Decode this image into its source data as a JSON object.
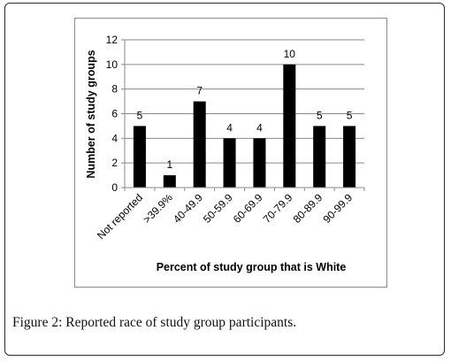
{
  "caption": {
    "label": "Figure 2:",
    "text": " Reported race of study group participants."
  },
  "chart_data": {
    "type": "bar",
    "title": "",
    "xlabel": "Percent of study group that is White",
    "ylabel": "Number of study groups",
    "categories": [
      "Not reported",
      ">39.9%",
      "40-49.9",
      "50-59.9",
      "60-69.9",
      "70-79.9",
      "80-89.9",
      "90-99.9"
    ],
    "values": [
      5,
      1,
      7,
      4,
      4,
      10,
      5,
      5
    ],
    "ylim": [
      0,
      12
    ],
    "yticks": [
      "0",
      "2",
      "4",
      "6",
      "8",
      "10",
      "12"
    ],
    "grid": "horizontal",
    "bar_color": "#000000"
  }
}
